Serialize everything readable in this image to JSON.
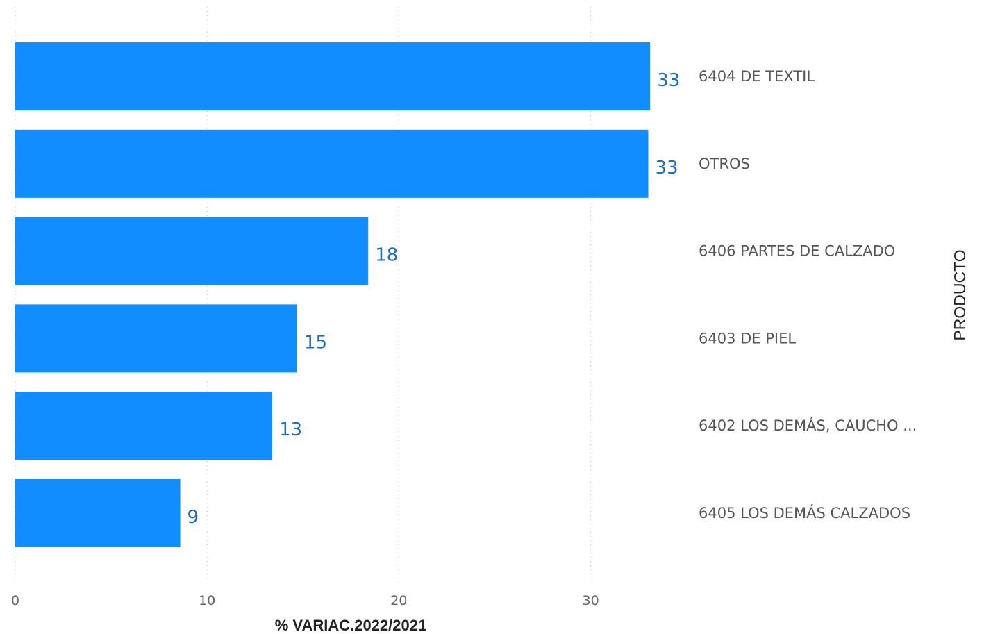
{
  "chart_data": {
    "type": "bar",
    "orientation": "horizontal",
    "categories": [
      "6404 DE TEXTIL",
      "OTROS",
      "6406 PARTES DE CALZADO",
      "6403 DE PIEL",
      "6402 LOS DEMÁS, CAUCHO ...",
      "6405 LOS DEMÁS CALZADOS"
    ],
    "values": [
      33.1,
      33.0,
      18.4,
      14.7,
      13.4,
      8.6
    ],
    "data_labels": [
      "33",
      "33",
      "18",
      "15",
      "13",
      "9"
    ],
    "xlabel": "% VARIAC.2022/2021",
    "ylabel": "PRODUCTO",
    "xlim": [
      0,
      33.5
    ],
    "xticks": [
      0,
      10,
      20,
      30
    ],
    "tick_labels": [
      "0",
      "10",
      "20",
      "30"
    ],
    "grid": true,
    "colors": {
      "bar": "#118dff",
      "data_label": "#1a6ebd",
      "category_label": "#555555",
      "tick_label": "#666666",
      "axis_title": "#252423",
      "grid": "#b9b9b9"
    }
  }
}
